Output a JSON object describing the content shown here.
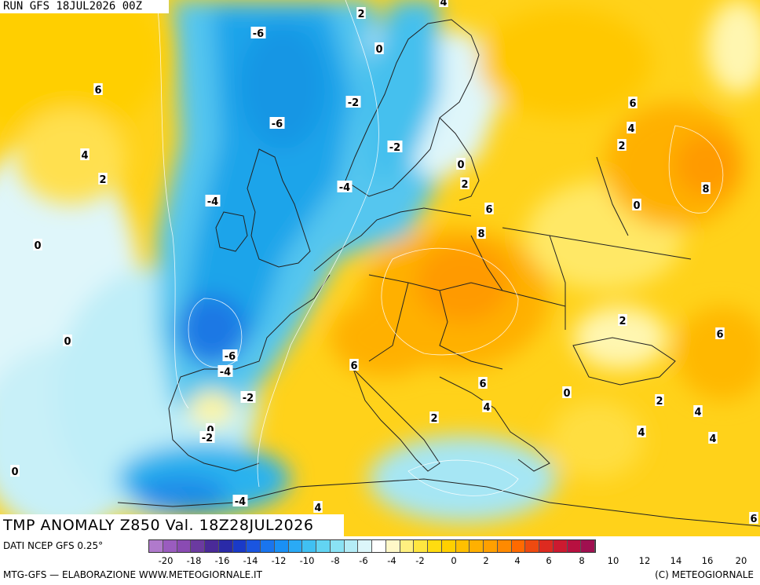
{
  "run_label": "RUN GFS 18JUL2026 00Z",
  "title": "TMP ANOMALY Z850 Val. 18Z28JUL2026",
  "source": "DATI NCEP GFS 0.25°",
  "credit_left": "MTG-GFS — ELABORAZIONE WWW.METEOGIORNALE.IT",
  "credit_right": "(C) METEOGIORNALE",
  "colorbar": {
    "ticks": [
      "-20",
      "-18",
      "-16",
      "-14",
      "-12",
      "-10",
      "-8",
      "-6",
      "-4",
      "-2",
      "0",
      "2",
      "4",
      "6",
      "8",
      "10",
      "12",
      "14",
      "16",
      "20"
    ],
    "colors": [
      "#b07acc",
      "#9a5cbf",
      "#8a4bb3",
      "#6b3aa0",
      "#4a2a98",
      "#2a2aa8",
      "#1a3ac8",
      "#1a55e0",
      "#1a75ee",
      "#1a90f5",
      "#2aaaf5",
      "#40c0f2",
      "#62d4f2",
      "#8ae2f4",
      "#b4ecf6",
      "#dcf6fa",
      "#ffffff",
      "#fff8c8",
      "#fff080",
      "#ffe640",
      "#ffdc10",
      "#ffd000",
      "#ffc000",
      "#ffb000",
      "#ffa000",
      "#ff8a00",
      "#ff6a00",
      "#ee4a10",
      "#dd2a20",
      "#cc1a30",
      "#b81040",
      "#a01050"
    ]
  },
  "contour_labels": [
    {
      "text": "2"
    },
    {
      "text": "4"
    },
    {
      "text": "-6"
    },
    {
      "text": "0"
    },
    {
      "text": "6"
    },
    {
      "text": "-2"
    },
    {
      "text": "-6"
    },
    {
      "text": "6"
    },
    {
      "text": "4"
    },
    {
      "text": "2"
    },
    {
      "text": "-2"
    },
    {
      "text": "4"
    },
    {
      "text": "2"
    },
    {
      "text": "0"
    },
    {
      "text": "-4"
    },
    {
      "text": "2"
    },
    {
      "text": "8"
    },
    {
      "text": "-4"
    },
    {
      "text": "6"
    },
    {
      "text": "0"
    },
    {
      "text": "8"
    },
    {
      "text": "0"
    },
    {
      "text": "0"
    },
    {
      "text": "2"
    },
    {
      "text": "6"
    },
    {
      "text": "-6"
    },
    {
      "text": "-4"
    },
    {
      "text": "6"
    },
    {
      "text": "6"
    },
    {
      "text": "0"
    },
    {
      "text": "-2"
    },
    {
      "text": "2"
    },
    {
      "text": "4"
    },
    {
      "text": "4"
    },
    {
      "text": "2"
    },
    {
      "text": "0"
    },
    {
      "text": "4"
    },
    {
      "text": "-2"
    },
    {
      "text": "4"
    },
    {
      "text": "0"
    },
    {
      "text": "-4"
    },
    {
      "text": "4"
    },
    {
      "text": "6"
    }
  ]
}
